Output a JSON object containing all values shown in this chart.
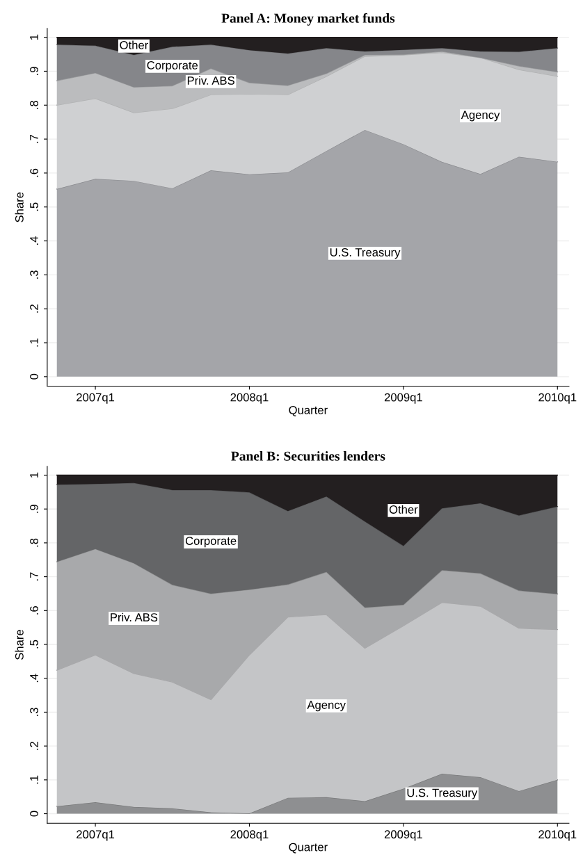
{
  "chart_data": [
    {
      "type": "area",
      "stacked": true,
      "title": "Panel A: Money market funds",
      "xlabel": "Quarter",
      "ylabel": "Share",
      "categories": [
        null,
        "2007q1",
        null,
        null,
        null,
        "2008q1",
        null,
        null,
        null,
        "2009q1",
        null,
        null,
        null,
        "2010q1"
      ],
      "ylim": [
        -0.028,
        1.026
      ],
      "yticks": [
        {
          "value": 0,
          "label": "0"
        },
        {
          "value": 0.1,
          "label": ".1"
        },
        {
          "value": 0.2,
          "label": ".2"
        },
        {
          "value": 0.3,
          "label": ".3"
        },
        {
          "value": 0.4,
          "label": ".4"
        },
        {
          "value": 0.5,
          "label": ".5"
        },
        {
          "value": 0.6,
          "label": ".6"
        },
        {
          "value": 0.7,
          "label": ".7"
        },
        {
          "value": 0.8,
          "label": ".8"
        },
        {
          "value": 0.9,
          "label": ".9"
        },
        {
          "value": 1,
          "label": "1"
        }
      ],
      "grid": "y",
      "legend": false,
      "series": [
        {
          "name": "U.S. Treasury",
          "color": "#a4a5a9",
          "values": [
            0.553,
            0.583,
            0.577,
            0.555,
            0.608,
            0.596,
            0.602,
            0.665,
            0.727,
            0.685,
            0.633,
            0.597,
            0.648,
            0.633
          ]
        },
        {
          "name": "Agency",
          "color": "#cfd0d2",
          "values": [
            0.247,
            0.237,
            0.201,
            0.235,
            0.223,
            0.237,
            0.229,
            0.22,
            0.217,
            0.263,
            0.322,
            0.343,
            0.257,
            0.252
          ]
        },
        {
          "name": "Priv. ABS",
          "color": "#bbbcbe",
          "values": [
            0.072,
            0.075,
            0.075,
            0.067,
            0.077,
            0.033,
            0.027,
            0.008,
            0.004,
            0.001,
            0.003,
            0.0,
            0.01,
            0.013
          ]
        },
        {
          "name": "Corporate",
          "color": "#85868a",
          "values": [
            0.106,
            0.08,
            0.095,
            0.115,
            0.07,
            0.096,
            0.094,
            0.075,
            0.01,
            0.014,
            0.01,
            0.018,
            0.042,
            0.07
          ]
        },
        {
          "name": "Other",
          "color": "#231f20",
          "values": [
            0.022,
            0.025,
            0.052,
            0.028,
            0.022,
            0.038,
            0.048,
            0.032,
            0.042,
            0.037,
            0.032,
            0.042,
            0.043,
            0.032
          ]
        }
      ]
    },
    {
      "type": "area",
      "stacked": true,
      "title": "Panel B: Securities lenders",
      "xlabel": "Quarter",
      "ylabel": "Share",
      "categories": [
        null,
        "2007q1",
        null,
        null,
        null,
        "2008q1",
        null,
        null,
        null,
        "2009q1",
        null,
        null,
        null,
        "2010q1"
      ],
      "ylim": [
        -0.028,
        1.026
      ],
      "yticks": [
        {
          "value": 0,
          "label": "0"
        },
        {
          "value": 0.1,
          "label": ".1"
        },
        {
          "value": 0.2,
          "label": ".2"
        },
        {
          "value": 0.3,
          "label": ".3"
        },
        {
          "value": 0.4,
          "label": ".4"
        },
        {
          "value": 0.5,
          "label": ".5"
        },
        {
          "value": 0.6,
          "label": ".6"
        },
        {
          "value": 0.7,
          "label": ".7"
        },
        {
          "value": 0.8,
          "label": ".8"
        },
        {
          "value": 0.9,
          "label": ".9"
        },
        {
          "value": 1,
          "label": "1"
        }
      ],
      "grid": "y",
      "legend": false,
      "series": [
        {
          "name": "U.S. Treasury",
          "color": "#8e8f91",
          "values": [
            0.022,
            0.034,
            0.02,
            0.016,
            0.004,
            0.001,
            0.047,
            0.049,
            0.037,
            0.074,
            0.118,
            0.108,
            0.067,
            0.1
          ]
        },
        {
          "name": "Agency",
          "color": "#c4c5c7",
          "values": [
            0.402,
            0.435,
            0.394,
            0.373,
            0.333,
            0.468,
            0.534,
            0.539,
            0.452,
            0.481,
            0.506,
            0.505,
            0.481,
            0.444
          ]
        },
        {
          "name": "Priv. ABS",
          "color": "#a8a9ab",
          "values": [
            0.32,
            0.313,
            0.326,
            0.287,
            0.313,
            0.193,
            0.096,
            0.126,
            0.12,
            0.062,
            0.095,
            0.097,
            0.111,
            0.105
          ]
        },
        {
          "name": "Corporate",
          "color": "#646567",
          "values": [
            0.228,
            0.192,
            0.237,
            0.28,
            0.306,
            0.287,
            0.217,
            0.223,
            0.254,
            0.174,
            0.183,
            0.207,
            0.222,
            0.258
          ]
        },
        {
          "name": "Other",
          "color": "#231f20",
          "values": [
            0.028,
            0.026,
            0.023,
            0.044,
            0.044,
            0.051,
            0.106,
            0.063,
            0.137,
            0.209,
            0.098,
            0.083,
            0.119,
            0.093
          ]
        }
      ]
    }
  ]
}
